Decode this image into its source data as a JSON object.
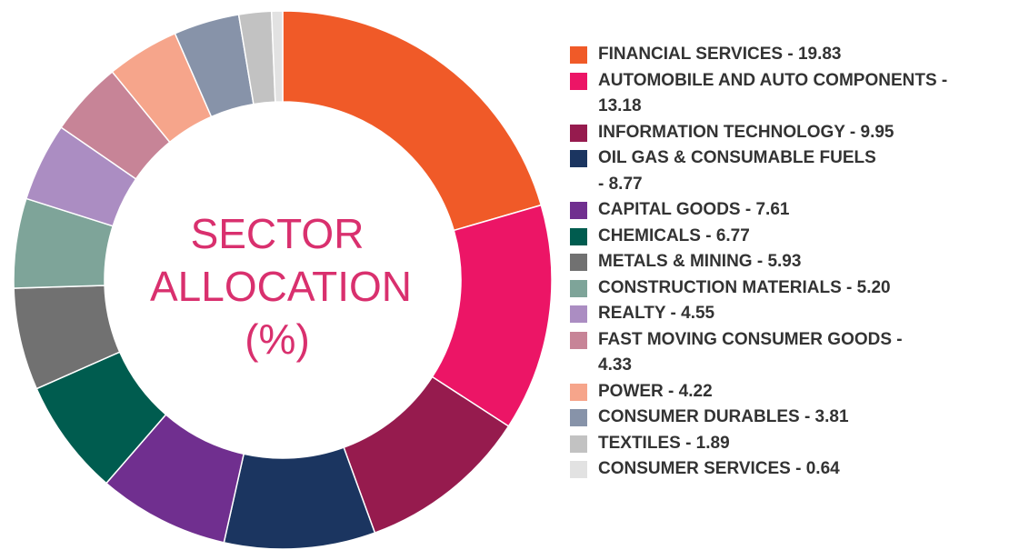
{
  "chart_data": {
    "type": "pie",
    "variant": "donut",
    "title_lines": [
      "SECTOR",
      "ALLOCATION",
      "(%)"
    ],
    "categories": [
      "FINANCIAL SERVICES",
      "AUTOMOBILE AND AUTO COMPONENTS",
      "INFORMATION TECHNOLOGY",
      "OIL GAS & CONSUMABLE FUELS",
      "CAPITAL GOODS",
      "CHEMICALS",
      "METALS & MINING",
      "CONSTRUCTION MATERIALS",
      "REALTY",
      "FAST MOVING CONSUMER GOODS",
      "POWER",
      "CONSUMER DURABLES",
      "TEXTILES",
      "CONSUMER SERVICES"
    ],
    "values": [
      19.83,
      13.18,
      9.95,
      8.77,
      7.61,
      6.77,
      5.93,
      5.2,
      4.55,
      4.33,
      4.22,
      3.81,
      1.89,
      0.64
    ],
    "legend_labels": [
      [
        "FINANCIAL SERVICES - 19.83"
      ],
      [
        "AUTOMOBILE AND AUTO COMPONENTS -",
        "13.18"
      ],
      [
        "INFORMATION TECHNOLOGY - 9.95"
      ],
      [
        "OIL GAS & CONSUMABLE FUELS",
        "- 8.77"
      ],
      [
        "CAPITAL GOODS - 7.61"
      ],
      [
        "CHEMICALS - 6.77"
      ],
      [
        "METALS & MINING - 5.93"
      ],
      [
        "CONSTRUCTION MATERIALS - 5.20"
      ],
      [
        "REALTY - 4.55"
      ],
      [
        "FAST MOVING CONSUMER GOODS -",
        "4.33"
      ],
      [
        "POWER - 4.22"
      ],
      [
        "CONSUMER DURABLES - 3.81"
      ],
      [
        "TEXTILES - 1.89"
      ],
      [
        "CONSUMER SERVICES - 0.64"
      ]
    ],
    "colors": [
      "#f05a28",
      "#ec1566",
      "#961b4e",
      "#1b3560",
      "#702f8f",
      "#005c4f",
      "#717171",
      "#7ea499",
      "#ab8dc2",
      "#c78497",
      "#f6a58b",
      "#8793a9",
      "#c2c2c2",
      "#e2e2e2"
    ],
    "legend_placement": "right",
    "title_color": "#d9306e"
  }
}
